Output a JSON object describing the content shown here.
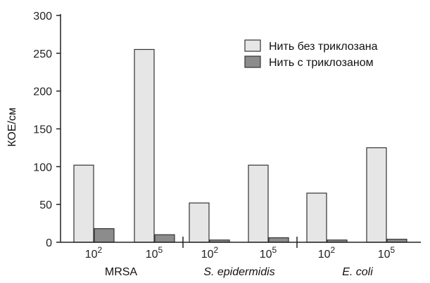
{
  "chart_data": {
    "type": "bar",
    "ylabel": "КОЕ/см",
    "xlabel": "",
    "title": "",
    "ylim": [
      0,
      300
    ],
    "yticks": [
      "0",
      "50",
      "100",
      "150",
      "200",
      "250",
      "300"
    ],
    "grid": false,
    "legend_position": "top-right",
    "groups": [
      {
        "label": "MRSA",
        "italic": false
      },
      {
        "label": "S. epidermidis",
        "italic": true
      },
      {
        "label": "E. coli",
        "italic": true
      }
    ],
    "categories": [
      {
        "base": "10",
        "exp": "2",
        "group": 0
      },
      {
        "base": "10",
        "exp": "5",
        "group": 0
      },
      {
        "base": "10",
        "exp": "2",
        "group": 1
      },
      {
        "base": "10",
        "exp": "5",
        "group": 1
      },
      {
        "base": "10",
        "exp": "2",
        "group": 2
      },
      {
        "base": "10",
        "exp": "5",
        "group": 2
      }
    ],
    "series": [
      {
        "name": "Нить без триклозана",
        "color": "#e6e6e6",
        "values": [
          102,
          255,
          52,
          102,
          65,
          125
        ]
      },
      {
        "name": "Нить с триклозаном",
        "color": "#8c8c8c",
        "values": [
          18,
          10,
          3,
          6,
          3,
          4
        ]
      }
    ]
  }
}
